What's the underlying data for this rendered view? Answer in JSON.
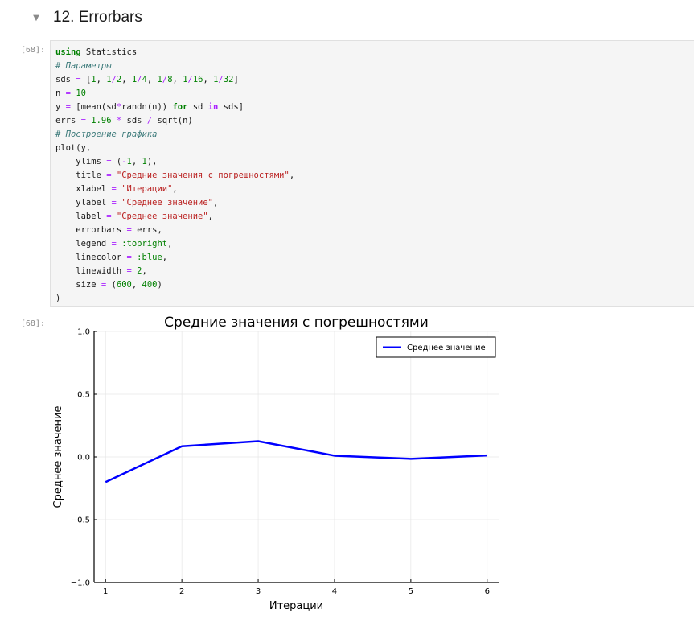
{
  "section": {
    "toggle_icon": "chevron-down-icon",
    "title": "12. Errorbars"
  },
  "code_cell": {
    "prompt": "[68]:",
    "lines": [
      [
        {
          "t": "kw",
          "v": "using"
        },
        {
          "t": "",
          "v": " Statistics"
        }
      ],
      [
        {
          "t": "cm",
          "v": "# Параметры"
        }
      ],
      [
        {
          "t": "",
          "v": "sds "
        },
        {
          "t": "oper",
          "v": "="
        },
        {
          "t": "",
          "v": " ["
        },
        {
          "t": "num",
          "v": "1"
        },
        {
          "t": "",
          "v": ", "
        },
        {
          "t": "num",
          "v": "1"
        },
        {
          "t": "oper",
          "v": "/"
        },
        {
          "t": "num",
          "v": "2"
        },
        {
          "t": "",
          "v": ", "
        },
        {
          "t": "num",
          "v": "1"
        },
        {
          "t": "oper",
          "v": "/"
        },
        {
          "t": "num",
          "v": "4"
        },
        {
          "t": "",
          "v": ", "
        },
        {
          "t": "num",
          "v": "1"
        },
        {
          "t": "oper",
          "v": "/"
        },
        {
          "t": "num",
          "v": "8"
        },
        {
          "t": "",
          "v": ", "
        },
        {
          "t": "num",
          "v": "1"
        },
        {
          "t": "oper",
          "v": "/"
        },
        {
          "t": "num",
          "v": "16"
        },
        {
          "t": "",
          "v": ", "
        },
        {
          "t": "num",
          "v": "1"
        },
        {
          "t": "oper",
          "v": "/"
        },
        {
          "t": "num",
          "v": "32"
        },
        {
          "t": "",
          "v": "]"
        }
      ],
      [
        {
          "t": "",
          "v": "n "
        },
        {
          "t": "oper",
          "v": "="
        },
        {
          "t": "",
          "v": " "
        },
        {
          "t": "num",
          "v": "10"
        }
      ],
      [
        {
          "t": "",
          "v": "y "
        },
        {
          "t": "oper",
          "v": "="
        },
        {
          "t": "",
          "v": " [mean(sd"
        },
        {
          "t": "oper",
          "v": "*"
        },
        {
          "t": "",
          "v": "randn(n)) "
        },
        {
          "t": "kw",
          "v": "for"
        },
        {
          "t": "",
          "v": " sd "
        },
        {
          "t": "op",
          "v": "in"
        },
        {
          "t": "",
          "v": " sds]"
        }
      ],
      [
        {
          "t": "",
          "v": "errs "
        },
        {
          "t": "oper",
          "v": "="
        },
        {
          "t": "",
          "v": " "
        },
        {
          "t": "num",
          "v": "1.96"
        },
        {
          "t": "",
          "v": " "
        },
        {
          "t": "oper",
          "v": "*"
        },
        {
          "t": "",
          "v": " sds "
        },
        {
          "t": "oper",
          "v": "/"
        },
        {
          "t": "",
          "v": " sqrt(n)"
        }
      ],
      [
        {
          "t": "cm",
          "v": "# Построение графика"
        }
      ],
      [
        {
          "t": "",
          "v": "plot(y,"
        }
      ],
      [
        {
          "t": "",
          "v": "    ylims "
        },
        {
          "t": "oper",
          "v": "="
        },
        {
          "t": "",
          "v": " ("
        },
        {
          "t": "oper",
          "v": "-"
        },
        {
          "t": "num",
          "v": "1"
        },
        {
          "t": "",
          "v": ", "
        },
        {
          "t": "num",
          "v": "1"
        },
        {
          "t": "",
          "v": "),"
        }
      ],
      [
        {
          "t": "",
          "v": "    title "
        },
        {
          "t": "oper",
          "v": "="
        },
        {
          "t": "",
          "v": " "
        },
        {
          "t": "str",
          "v": "\"Средние значения с погрешностями\""
        },
        {
          "t": "",
          "v": ","
        }
      ],
      [
        {
          "t": "",
          "v": "    xlabel "
        },
        {
          "t": "oper",
          "v": "="
        },
        {
          "t": "",
          "v": " "
        },
        {
          "t": "str",
          "v": "\"Итерации\""
        },
        {
          "t": "",
          "v": ","
        }
      ],
      [
        {
          "t": "",
          "v": "    ylabel "
        },
        {
          "t": "oper",
          "v": "="
        },
        {
          "t": "",
          "v": " "
        },
        {
          "t": "str",
          "v": "\"Среднее значение\""
        },
        {
          "t": "",
          "v": ","
        }
      ],
      [
        {
          "t": "",
          "v": "    label "
        },
        {
          "t": "oper",
          "v": "="
        },
        {
          "t": "",
          "v": " "
        },
        {
          "t": "str",
          "v": "\"Среднее значение\""
        },
        {
          "t": "",
          "v": ","
        }
      ],
      [
        {
          "t": "",
          "v": "    errorbars "
        },
        {
          "t": "oper",
          "v": "="
        },
        {
          "t": "",
          "v": " errs,"
        }
      ],
      [
        {
          "t": "",
          "v": "    legend "
        },
        {
          "t": "oper",
          "v": "="
        },
        {
          "t": "",
          "v": " "
        },
        {
          "t": "sym",
          "v": ":topright"
        },
        {
          "t": "",
          "v": ","
        }
      ],
      [
        {
          "t": "",
          "v": "    linecolor "
        },
        {
          "t": "oper",
          "v": "="
        },
        {
          "t": "",
          "v": " "
        },
        {
          "t": "sym",
          "v": ":blue"
        },
        {
          "t": "",
          "v": ","
        }
      ],
      [
        {
          "t": "",
          "v": "    linewidth "
        },
        {
          "t": "oper",
          "v": "="
        },
        {
          "t": "",
          "v": " "
        },
        {
          "t": "num",
          "v": "2"
        },
        {
          "t": "",
          "v": ","
        }
      ],
      [
        {
          "t": "",
          "v": "    size "
        },
        {
          "t": "oper",
          "v": "="
        },
        {
          "t": "",
          "v": " ("
        },
        {
          "t": "num",
          "v": "600"
        },
        {
          "t": "",
          "v": ", "
        },
        {
          "t": "num",
          "v": "400"
        },
        {
          "t": "",
          "v": ")"
        }
      ],
      [
        {
          "t": "",
          "v": ")"
        }
      ]
    ]
  },
  "output": {
    "prompt": "[68]:"
  },
  "chart_data": {
    "type": "line",
    "title": "Средние значения с погрешностями",
    "xlabel": "Итерации",
    "ylabel": "Среднее значение",
    "x": [
      1,
      2,
      3,
      4,
      5,
      6
    ],
    "xticks": [
      "1",
      "2",
      "3",
      "4",
      "5",
      "6"
    ],
    "xlim": [
      0.85,
      6.15
    ],
    "yticks": [
      "1.0",
      "0.5",
      "0.0",
      "−0.5",
      "−1.0"
    ],
    "ytick_values": [
      1.0,
      0.5,
      0.0,
      -0.5,
      -1.0
    ],
    "ylim": [
      -1,
      1
    ],
    "grid": true,
    "legend_position": "top-right",
    "series": [
      {
        "name": "Среднее значение",
        "values": [
          -0.2,
          0.085,
          0.125,
          0.01,
          -0.015,
          0.012
        ],
        "color": "#0000ff"
      }
    ]
  }
}
